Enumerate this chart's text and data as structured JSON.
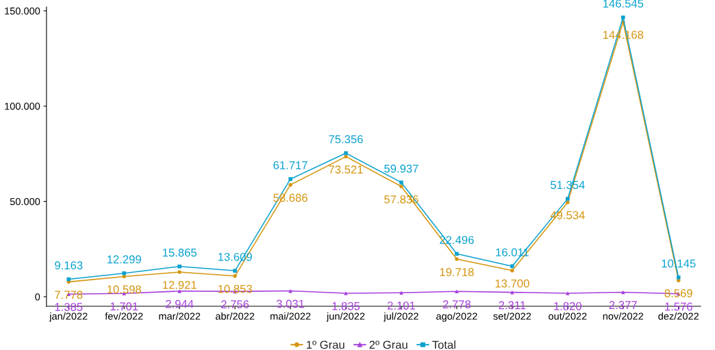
{
  "chart_data": {
    "type": "line",
    "categories": [
      "jan/2022",
      "fev/2022",
      "mar/2022",
      "abr/2022",
      "mai/2022",
      "jun/2022",
      "jul/2022",
      "ago/2022",
      "set/2022",
      "out/2022",
      "nov/2022",
      "dez/2022"
    ],
    "series": [
      {
        "name": "1º Grau",
        "color": "#d4950f",
        "marker": "circle",
        "values": [
          7778,
          10598,
          12921,
          10853,
          58686,
          73521,
          57836,
          19718,
          13700,
          49534,
          144168,
          8569
        ],
        "value_labels": [
          "7.778",
          "10.598",
          "12.921",
          "10.853",
          "58.686",
          "73.521",
          "57.836",
          "19.718",
          "13.700",
          "49.534",
          "144.168",
          "8.569"
        ]
      },
      {
        "name": "2º Grau",
        "color": "#a53fdb",
        "marker": "triangle",
        "values": [
          1385,
          1701,
          2944,
          2756,
          3031,
          1835,
          2101,
          2778,
          2311,
          1820,
          2377,
          1576
        ],
        "value_labels": [
          "1.385",
          "1.701",
          "2.944",
          "2.756",
          "3.031",
          "1.835",
          "2.101",
          "2.778",
          "2.311",
          "1.820",
          "2.377",
          "1.576"
        ]
      },
      {
        "name": "Total",
        "color": "#0aa2cf",
        "marker": "square",
        "values": [
          9163,
          12299,
          15865,
          13609,
          61717,
          75356,
          59937,
          22496,
          16011,
          51354,
          146545,
          10145
        ],
        "value_labels": [
          "9.163",
          "12.299",
          "15.865",
          "13.609",
          "61.717",
          "75.356",
          "59.937",
          "22.496",
          "16.011",
          "51.354",
          "146.545",
          "10.145"
        ]
      }
    ],
    "ylim": [
      -5000,
      152000
    ],
    "yticks": [
      0,
      {
        "value": 50000,
        "label": "50.000"
      },
      {
        "value": 100000,
        "label": "100.000"
      },
      {
        "value": 150000,
        "label": "150.000"
      }
    ],
    "grid": false,
    "legend": "bottom",
    "line_style": "solid"
  }
}
